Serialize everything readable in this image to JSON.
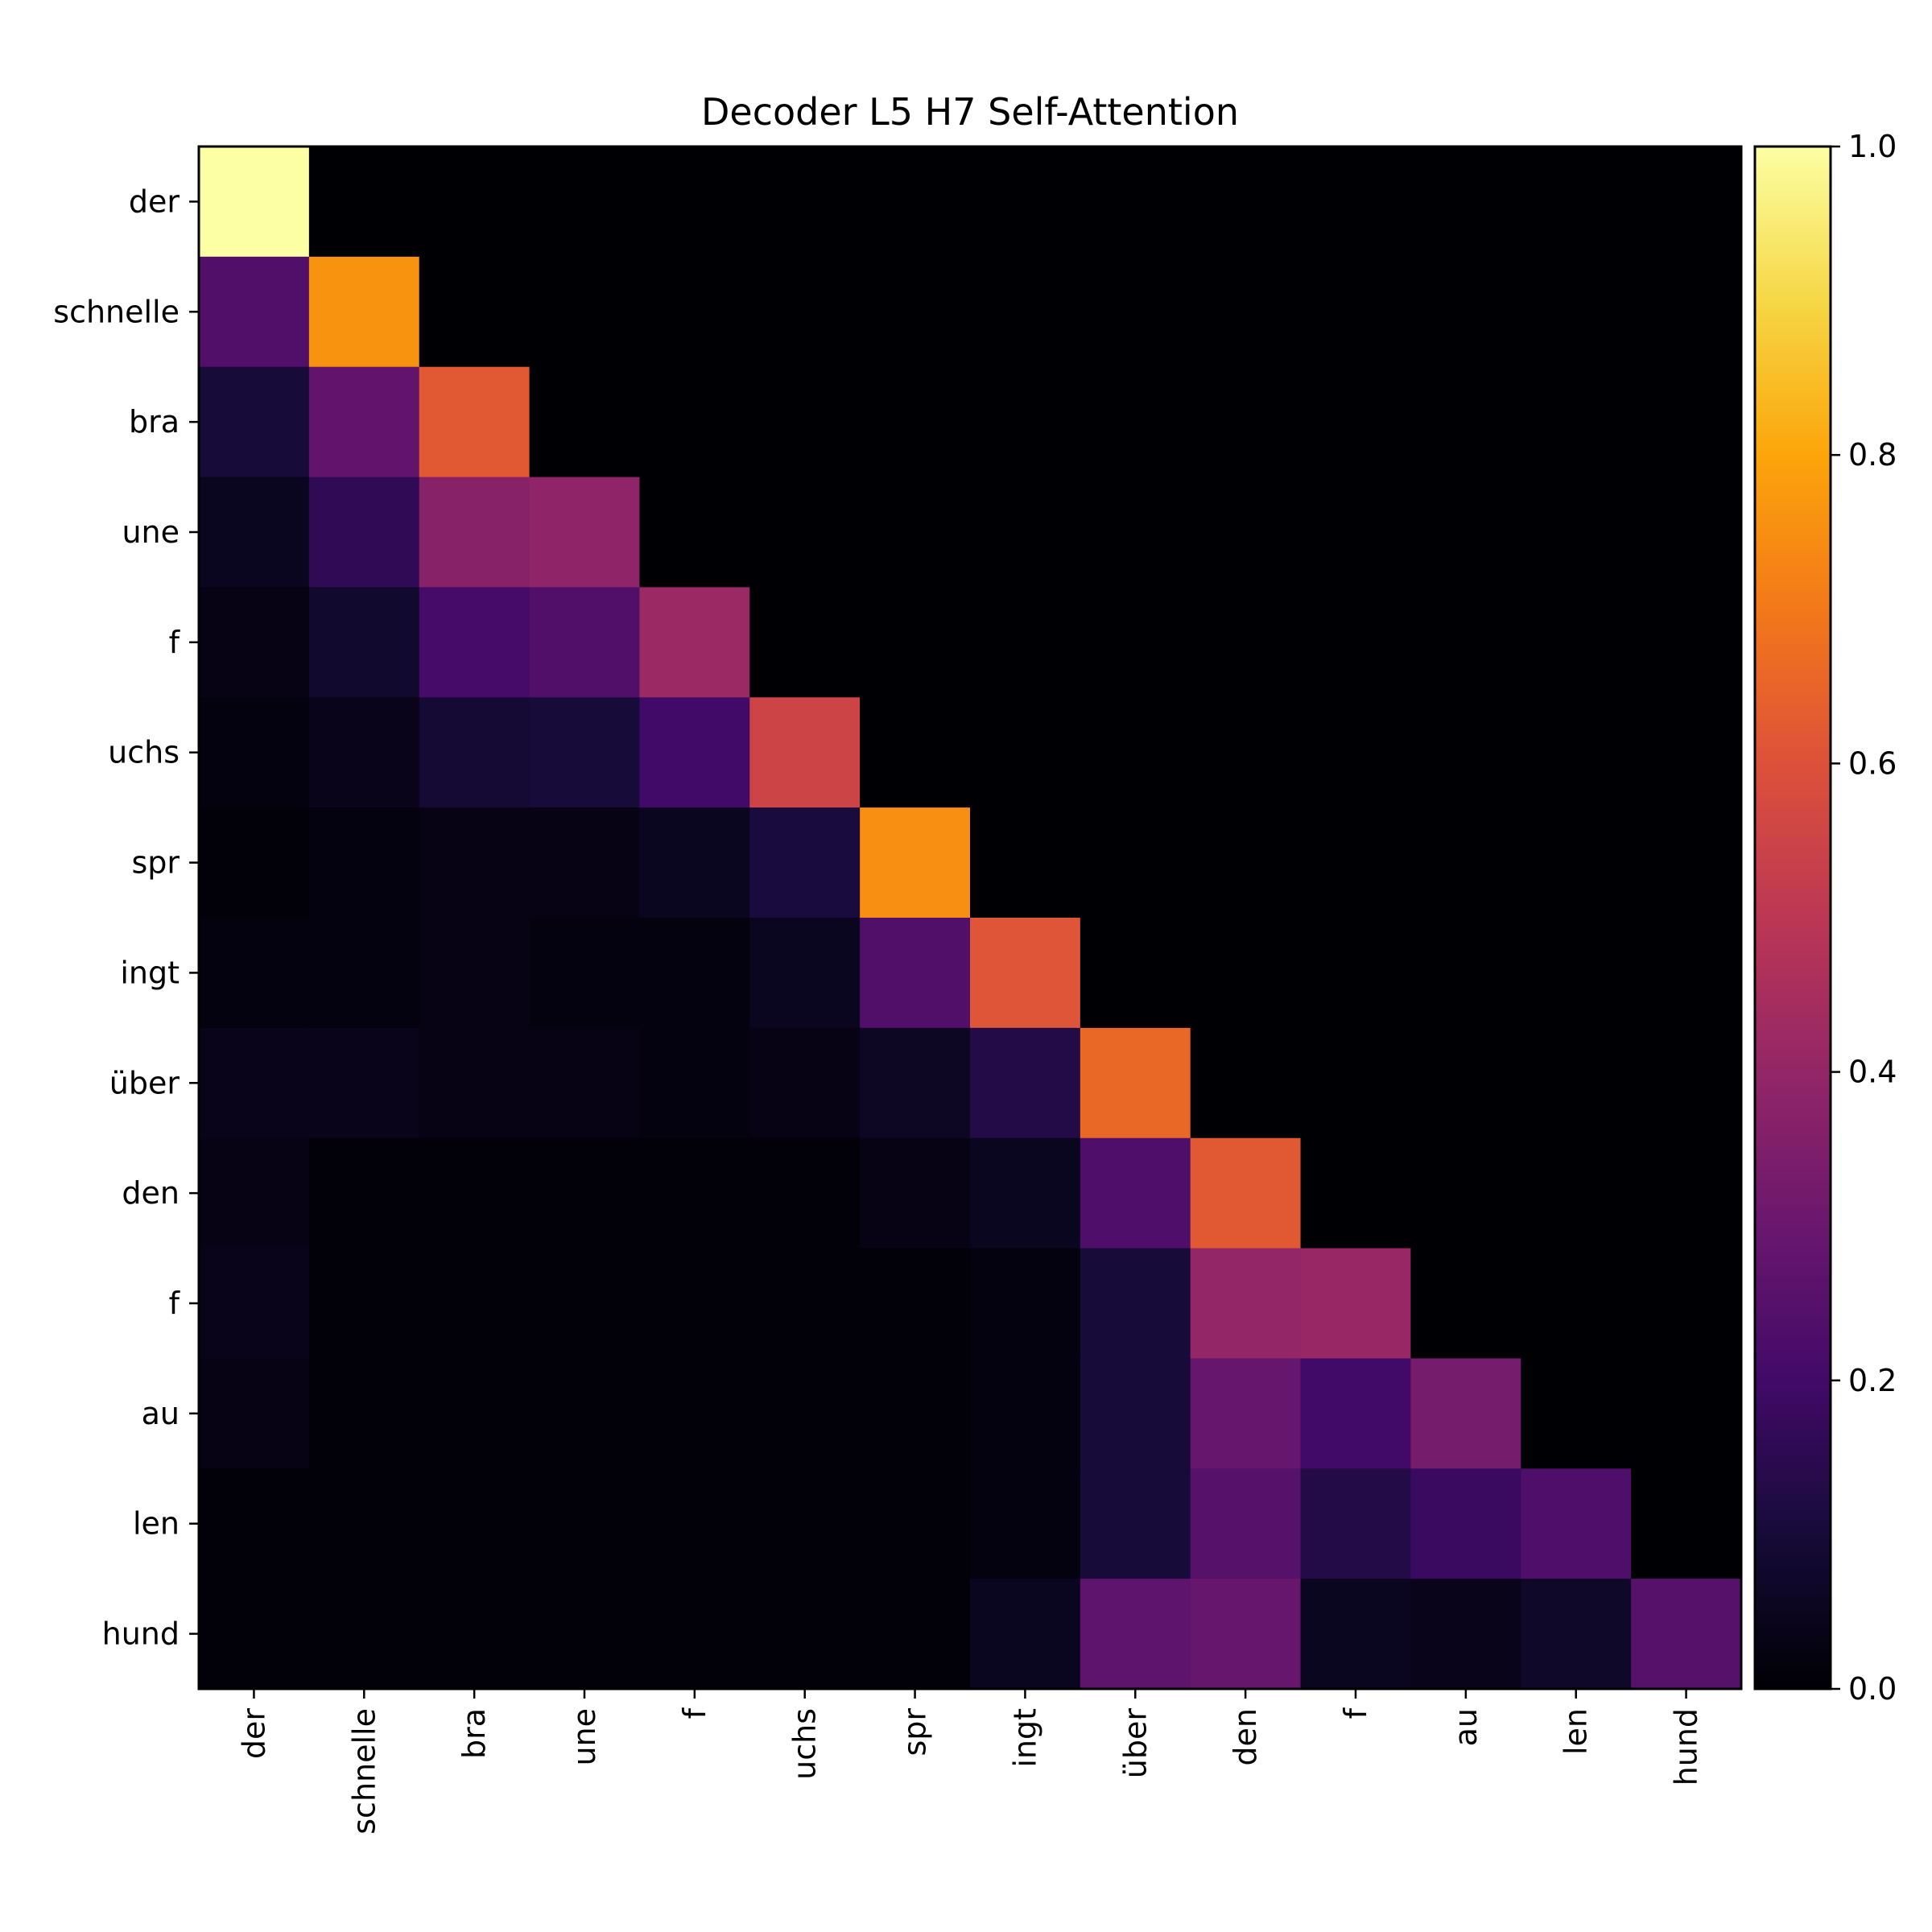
{
  "chart_data": {
    "type": "heatmap",
    "title": "Decoder L5 H7 Self-Attention",
    "xlabel": "",
    "ylabel": "",
    "x_tokens": [
      "der",
      "schnelle",
      "bra",
      "une",
      "f",
      "uchs",
      "spr",
      "ingt",
      "über",
      "den",
      "f",
      "au",
      "len",
      "hund"
    ],
    "y_tokens": [
      "der",
      "schnelle",
      "bra",
      "une",
      "f",
      "uchs",
      "spr",
      "ingt",
      "über",
      "den",
      "f",
      "au",
      "len",
      "hund"
    ],
    "values": [
      [
        1.0,
        0,
        0,
        0,
        0,
        0,
        0,
        0,
        0,
        0,
        0,
        0,
        0,
        0
      ],
      [
        0.24,
        0.76,
        0,
        0,
        0,
        0,
        0,
        0,
        0,
        0,
        0,
        0,
        0,
        0
      ],
      [
        0.1,
        0.28,
        0.62,
        0,
        0,
        0,
        0,
        0,
        0,
        0,
        0,
        0,
        0,
        0
      ],
      [
        0.05,
        0.16,
        0.37,
        0.39,
        0,
        0,
        0,
        0,
        0,
        0,
        0,
        0,
        0,
        0
      ],
      [
        0.03,
        0.08,
        0.21,
        0.24,
        0.42,
        0,
        0,
        0,
        0,
        0,
        0,
        0,
        0,
        0
      ],
      [
        0.02,
        0.04,
        0.09,
        0.1,
        0.2,
        0.55,
        0,
        0,
        0,
        0,
        0,
        0,
        0,
        0
      ],
      [
        0.01,
        0.02,
        0.03,
        0.03,
        0.05,
        0.11,
        0.75,
        0,
        0,
        0,
        0,
        0,
        0,
        0
      ],
      [
        0.02,
        0.02,
        0.03,
        0.02,
        0.02,
        0.05,
        0.24,
        0.61,
        0,
        0,
        0,
        0,
        0,
        0
      ],
      [
        0.04,
        0.04,
        0.03,
        0.03,
        0.02,
        0.03,
        0.06,
        0.13,
        0.66,
        0,
        0,
        0,
        0,
        0
      ],
      [
        0.03,
        0.01,
        0.01,
        0.01,
        0.01,
        0.01,
        0.03,
        0.05,
        0.23,
        0.62,
        0,
        0,
        0,
        0
      ],
      [
        0.04,
        0.01,
        0.01,
        0.01,
        0.01,
        0.01,
        0.01,
        0.02,
        0.1,
        0.4,
        0.41,
        0,
        0,
        0
      ],
      [
        0.03,
        0.01,
        0.01,
        0.01,
        0.01,
        0.01,
        0.01,
        0.02,
        0.1,
        0.29,
        0.2,
        0.33,
        0,
        0
      ],
      [
        0.01,
        0.01,
        0.01,
        0.01,
        0.01,
        0.01,
        0.01,
        0.02,
        0.1,
        0.25,
        0.13,
        0.18,
        0.23,
        0
      ],
      [
        0.01,
        0.01,
        0.01,
        0.01,
        0.01,
        0.01,
        0.01,
        0.05,
        0.27,
        0.29,
        0.05,
        0.04,
        0.07,
        0.25
      ]
    ],
    "colormap": "inferno",
    "vmin": 0.0,
    "vmax": 1.0,
    "colorbar_ticks": [
      "0.0",
      "0.2",
      "0.4",
      "0.6",
      "0.8",
      "1.0"
    ],
    "colorbar_tick_values": [
      0.0,
      0.2,
      0.4,
      0.6,
      0.8,
      1.0
    ],
    "grid": false
  }
}
